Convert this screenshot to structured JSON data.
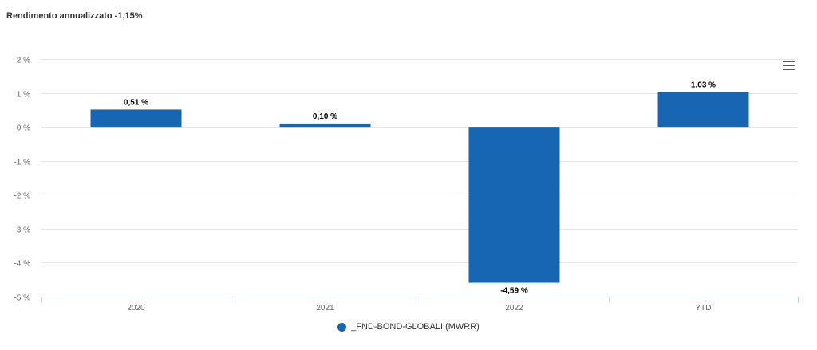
{
  "header": {
    "title": "Rendimento annualizzato -1,15%"
  },
  "colors": {
    "bar": "#1666b4",
    "grid": "#e6e6e6",
    "axis": "#ccd6eb",
    "tick_text": "#666666",
    "label_text": "#000000"
  },
  "icons": {
    "menu": "hamburger-menu-icon"
  },
  "legend": {
    "label": "_FND-BOND-GLOBALI (MWRR)"
  },
  "chart_data": {
    "type": "bar",
    "title": "Rendimento annualizzato -1,15%",
    "xlabel": "",
    "ylabel": "",
    "categories": [
      "2020",
      "2021",
      "2022",
      "YTD"
    ],
    "series": [
      {
        "name": "_FND-BOND-GLOBALI (MWRR)",
        "values": [
          0.51,
          0.1,
          -4.59,
          1.03
        ],
        "labels": [
          "0,51 %",
          "0,10 %",
          "-4,59 %",
          "1,03 %"
        ]
      }
    ],
    "ylim": [
      -5,
      2
    ],
    "yticks": [
      2,
      1,
      0,
      -1,
      -2,
      -3,
      -4,
      -5
    ],
    "ytick_labels": [
      "2 %",
      "1 %",
      "0 %",
      "-1 %",
      "-2 %",
      "-3 %",
      "-4 %",
      "-5 %"
    ],
    "grid": true,
    "legend_position": "bottom-center"
  }
}
